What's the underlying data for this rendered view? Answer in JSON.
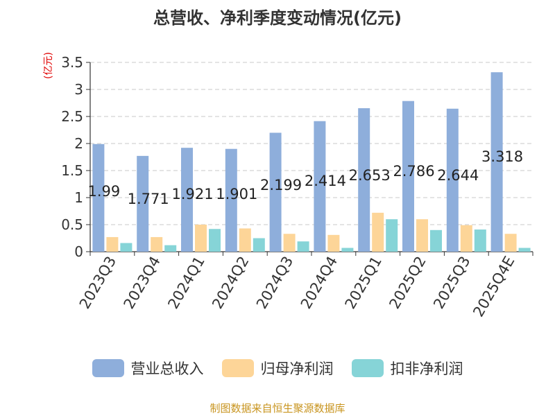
{
  "title": "总营收、净利季度变动情况(亿元)",
  "unit_label": "(亿元)",
  "source": "制图数据来自恒生聚源数据库",
  "chart_data": {
    "type": "bar",
    "categories": [
      "2023Q3",
      "2023Q4",
      "2024Q1",
      "2024Q2",
      "2024Q3",
      "2024Q4",
      "2025Q1",
      "2025Q2",
      "2025Q3",
      "2025Q4E"
    ],
    "ylim": [
      0,
      3.5
    ],
    "yticks": [
      0,
      0.5,
      1,
      1.5,
      2,
      2.5,
      3,
      3.5
    ],
    "ytick_labels": [
      "0",
      "0.5",
      "1",
      "1.5",
      "2",
      "2.5",
      "3",
      "3.5"
    ],
    "grid": true,
    "legend_position": "bottom",
    "series": [
      {
        "name": "营业总收入",
        "color": "#8eaedb",
        "values": [
          1.99,
          1.771,
          1.921,
          1.901,
          2.199,
          2.414,
          2.653,
          2.786,
          2.644,
          3.318
        ],
        "labels": [
          "1.99",
          "1.771",
          "1.921",
          "1.901",
          "2.199",
          "2.414",
          "2.653",
          "2.786",
          "2.644",
          "3.318"
        ]
      },
      {
        "name": "归母净利润",
        "color": "#fdd598",
        "values": [
          0.27,
          0.27,
          0.5,
          0.43,
          0.33,
          0.31,
          0.72,
          0.6,
          0.49,
          0.33
        ]
      },
      {
        "name": "扣非净利润",
        "color": "#86d4d7",
        "values": [
          0.16,
          0.12,
          0.42,
          0.25,
          0.19,
          0.07,
          0.6,
          0.4,
          0.41,
          0.07
        ]
      }
    ]
  }
}
